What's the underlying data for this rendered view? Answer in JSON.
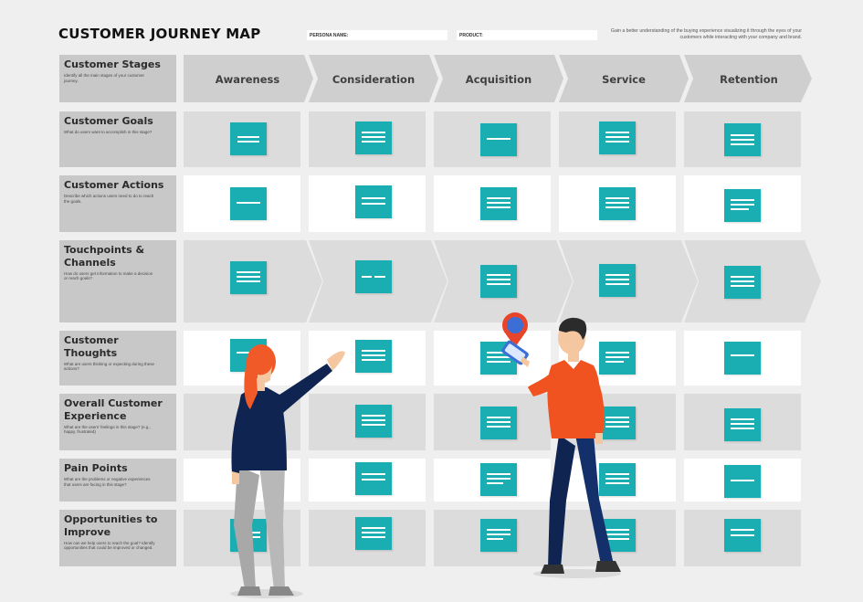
{
  "header": {
    "title": "CUSTOMER JOURNEY MAP",
    "persona_label": "PERSONA NAME:",
    "product_label": "PRODUCT:",
    "description": "Gain a better understanding of the buying experience visualizing it through the eyes of your customers while interacting with your company and brand."
  },
  "stages": [
    "Awareness",
    "Consideration",
    "Acquisition",
    "Service",
    "Retention"
  ],
  "rows": [
    {
      "title": "Customer Stages",
      "subtitle": "Identify all the main stages of your customer journey."
    },
    {
      "title": "Customer Goals",
      "subtitle": "What do users want to accomplish in this stage?"
    },
    {
      "title": "Customer Actions",
      "subtitle": "Describe which actions users need to do to reach the goals."
    },
    {
      "title": "Touchpoints & Channels",
      "subtitle": "How do users get information to make a decision or reach goals?"
    },
    {
      "title": "Customer Thoughts",
      "subtitle": "What are users thinking or expecting during these actions?"
    },
    {
      "title": "Overall Customer Experience",
      "subtitle": "What are the users' feelings in this stage? (e.g., happy, frustrated)"
    },
    {
      "title": "Pain Points",
      "subtitle": "What are the problems or negative experiences that users are facing in this stage?"
    },
    {
      "title": "Opportunities to Improve",
      "subtitle": "How can we help users to reach the goal? Identify opportunities that could be improved or changed."
    }
  ],
  "colors": {
    "note": "#1aaeb2",
    "label_bg": "#c8c8c8",
    "cell_grey": "#dcdcdc",
    "chevron": "#cfcfcf",
    "woman_hair": "#f05a28",
    "woman_top": "#0f2450",
    "woman_pants": "#a8a8a8",
    "man_shirt": "#f0531f",
    "man_pants": "#0f2450",
    "pin": "#e8442a"
  }
}
